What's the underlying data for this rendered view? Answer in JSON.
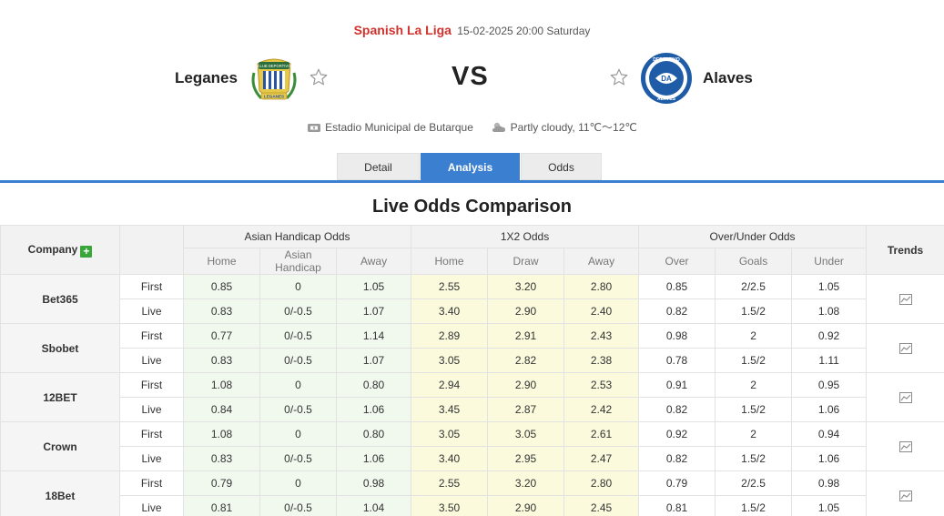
{
  "match": {
    "league": "Spanish La Liga",
    "datetime": "15-02-2025 20:00 Saturday",
    "home_team": "Leganes",
    "away_team": "Alaves",
    "vs_label": "VS",
    "venue": "Estadio Municipal de Butarque",
    "weather": "Partly cloudy, 11℃～12℃"
  },
  "tabs": [
    {
      "label": "Detail",
      "active": false
    },
    {
      "label": "Analysis",
      "active": true
    },
    {
      "label": "Odds",
      "active": false
    }
  ],
  "section_title": "Live Odds Comparison",
  "table": {
    "company_label": "Company",
    "trends_label": "Trends",
    "groups": {
      "asian_handicap": "Asian Handicap Odds",
      "x12": "1X2 Odds",
      "over_under": "Over/Under Odds"
    },
    "subheaders": {
      "ah": [
        "Home",
        "Asian Handicap",
        "Away"
      ],
      "x12": [
        "Home",
        "Draw",
        "Away"
      ],
      "ou": [
        "Over",
        "Goals",
        "Under"
      ]
    },
    "rows": [
      {
        "company": "Bet365",
        "first": {
          "phase": "First",
          "ah": [
            "0.85",
            "0",
            "1.05"
          ],
          "x12": [
            "2.55",
            "3.20",
            "2.80"
          ],
          "ou": [
            "0.85",
            "2/2.5",
            "1.05"
          ]
        },
        "live": {
          "phase": "Live",
          "ah": [
            "0.83",
            "0/-0.5",
            "1.07"
          ],
          "x12": [
            "3.40",
            "2.90",
            "2.40"
          ],
          "ou": [
            "0.82",
            "1.5/2",
            "1.08"
          ]
        }
      },
      {
        "company": "Sbobet",
        "first": {
          "phase": "First",
          "ah": [
            "0.77",
            "0/-0.5",
            "1.14"
          ],
          "x12": [
            "2.89",
            "2.91",
            "2.43"
          ],
          "ou": [
            "0.98",
            "2",
            "0.92"
          ]
        },
        "live": {
          "phase": "Live",
          "ah": [
            "0.83",
            "0/-0.5",
            "1.07"
          ],
          "x12": [
            "3.05",
            "2.82",
            "2.38"
          ],
          "ou": [
            "0.78",
            "1.5/2",
            "1.11"
          ]
        }
      },
      {
        "company": "12BET",
        "first": {
          "phase": "First",
          "ah": [
            "1.08",
            "0",
            "0.80"
          ],
          "x12": [
            "2.94",
            "2.90",
            "2.53"
          ],
          "ou": [
            "0.91",
            "2",
            "0.95"
          ]
        },
        "live": {
          "phase": "Live",
          "ah": [
            "0.84",
            "0/-0.5",
            "1.06"
          ],
          "x12": [
            "3.45",
            "2.87",
            "2.42"
          ],
          "ou": [
            "0.82",
            "1.5/2",
            "1.06"
          ]
        }
      },
      {
        "company": "Crown",
        "first": {
          "phase": "First",
          "ah": [
            "1.08",
            "0",
            "0.80"
          ],
          "x12": [
            "3.05",
            "3.05",
            "2.61"
          ],
          "ou": [
            "0.92",
            "2",
            "0.94"
          ]
        },
        "live": {
          "phase": "Live",
          "ah": [
            "0.83",
            "0/-0.5",
            "1.06"
          ],
          "x12": [
            "3.40",
            "2.95",
            "2.47"
          ],
          "ou": [
            "0.82",
            "1.5/2",
            "1.06"
          ]
        }
      },
      {
        "company": "18Bet",
        "first": {
          "phase": "First",
          "ah": [
            "0.79",
            "0",
            "0.98"
          ],
          "x12": [
            "2.55",
            "3.20",
            "2.80"
          ],
          "ou": [
            "0.79",
            "2/2.5",
            "0.98"
          ]
        },
        "live": {
          "phase": "Live",
          "ah": [
            "0.81",
            "0/-0.5",
            "1.04"
          ],
          "x12": [
            "3.50",
            "2.90",
            "2.45"
          ],
          "ou": [
            "0.81",
            "1.5/2",
            "1.05"
          ]
        }
      }
    ]
  },
  "icons": {
    "favorite": "star-outline-icon",
    "venue": "stadium-icon",
    "weather": "partly-cloudy-icon",
    "add": "plus-icon",
    "trend": "line-chart-icon"
  },
  "colors": {
    "league": "#d2322d",
    "accent": "#3b7fd1",
    "add_button": "#3aa53a",
    "ah_bg": "#f1f9ef",
    "x12_bg": "#fbfadd"
  },
  "crest_text": {
    "home_top": "CLUB DEPORTIVO",
    "home_bottom": "LEGANES",
    "away_top": "DEPORTIVO",
    "away_bottom": "ALAVES"
  }
}
